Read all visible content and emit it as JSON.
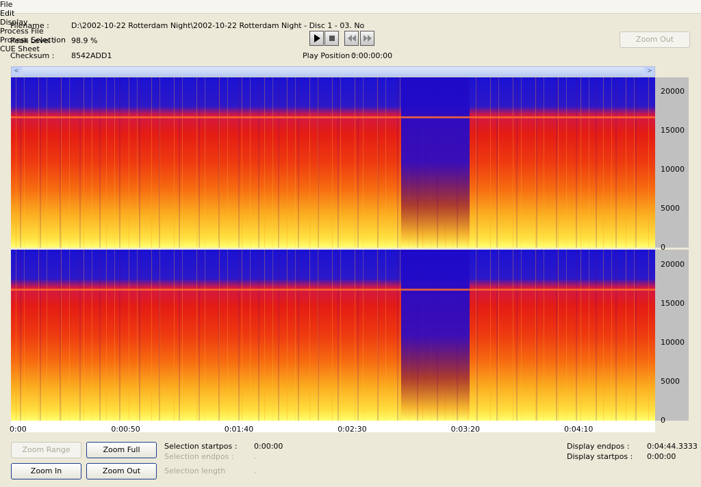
{
  "menu": [
    "File",
    "Edit",
    "Display",
    "Process File",
    "Process Selection",
    "CUE Sheet"
  ],
  "info": {
    "filename_label": "Filename :",
    "filename": "D:\\2002-10-22 Rotterdam Night\\2002-10-22 Rotterdam Night - Disc 1 - 03. No",
    "peak_label": "Peak Level :",
    "peak": "98.9 %",
    "checksum_label": "Checksum :",
    "checksum": "8542ADD1",
    "play_position_label": "Play Position :",
    "play_position": "0:00:00:00"
  },
  "buttons": {
    "zoom_out_top": "Zoom Out",
    "zoom_range": "Zoom Range",
    "zoom_full": "Zoom Full",
    "zoom_in": "Zoom In",
    "zoom_out": "Zoom Out"
  },
  "spectrogram": {
    "freq_labels": [
      20000,
      15000,
      10000,
      5000,
      0
    ],
    "time_labels": [
      "0:00",
      "0:00:50",
      "0:01:40",
      "0:02:30",
      "0:03:20",
      "0:04:10"
    ]
  },
  "selection": {
    "startpos_label": "Selection startpos :",
    "startpos": "0:00:00",
    "endpos_label": "Selection endpos :",
    "endpos": ".",
    "length_label": "Selection length",
    "length": "."
  },
  "display": {
    "endpos_label": "Display endpos :",
    "endpos": "0:04:44.3333",
    "startpos_label": "Display startpos :",
    "startpos": "0:00:00"
  }
}
